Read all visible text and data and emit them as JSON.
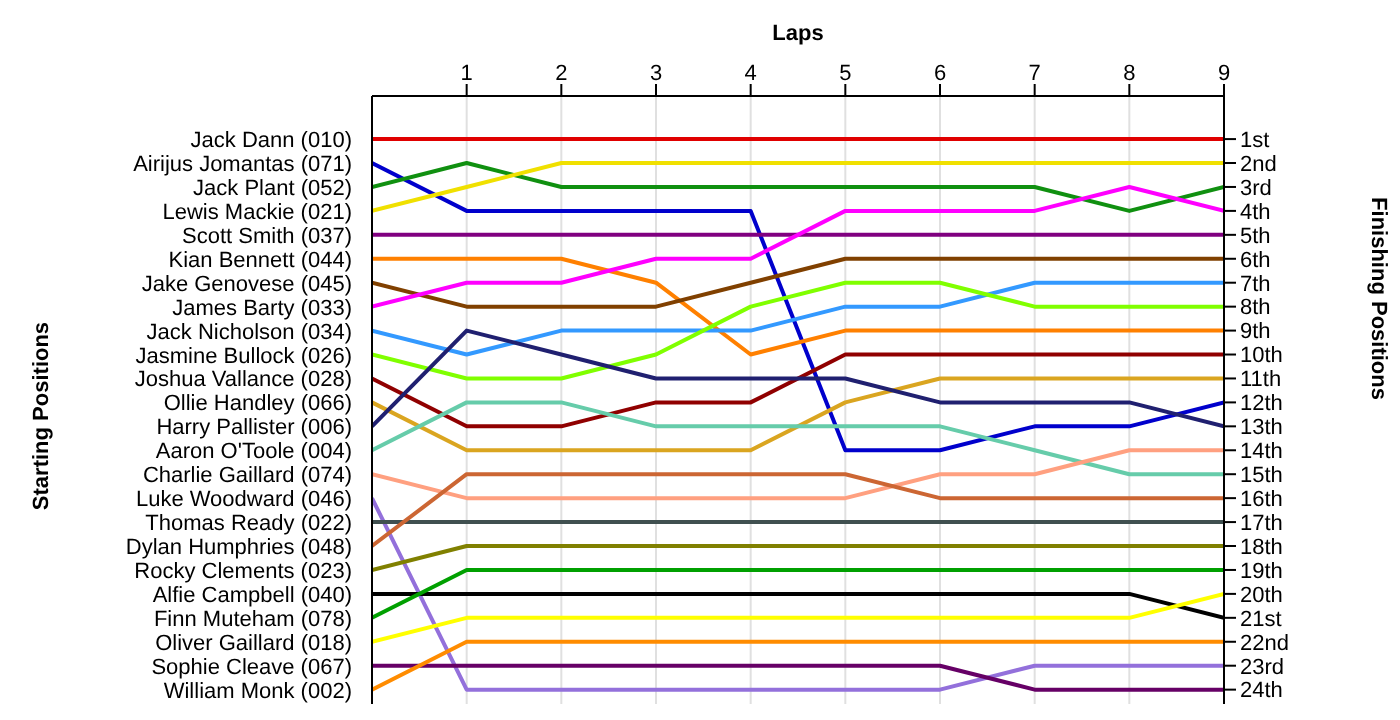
{
  "chart_data": {
    "type": "line",
    "xlabel": "Laps",
    "annotations": [
      "Starting Positions"
    ],
    "y2label": "Finishing Positions",
    "x": [
      0,
      1,
      2,
      3,
      4,
      5,
      6,
      7,
      8,
      9
    ],
    "xlim": [
      0,
      9
    ],
    "xticks": [
      1,
      2,
      3,
      4,
      5,
      6,
      7,
      8,
      9
    ],
    "y2lim": [
      24.6,
      -0.8
    ],
    "y2ticks": [
      {
        "value": 1,
        "label": "1st"
      },
      {
        "value": 2,
        "label": "2nd"
      },
      {
        "value": 3,
        "label": "3rd"
      },
      {
        "value": 4,
        "label": "4th"
      },
      {
        "value": 5,
        "label": "5th"
      },
      {
        "value": 6,
        "label": "6th"
      },
      {
        "value": 7,
        "label": "7th"
      },
      {
        "value": 8,
        "label": "8th"
      },
      {
        "value": 9,
        "label": "9th"
      },
      {
        "value": 10,
        "label": "10th"
      },
      {
        "value": 11,
        "label": "11th"
      },
      {
        "value": 12,
        "label": "12th"
      },
      {
        "value": 13,
        "label": "13th"
      },
      {
        "value": 14,
        "label": "14th"
      },
      {
        "value": 15,
        "label": "15th"
      },
      {
        "value": 16,
        "label": "16th"
      },
      {
        "value": 17,
        "label": "17th"
      },
      {
        "value": 18,
        "label": "18th"
      },
      {
        "value": 19,
        "label": "19th"
      },
      {
        "value": 20,
        "label": "20th"
      },
      {
        "value": 21,
        "label": "21st"
      },
      {
        "value": 22,
        "label": "22nd"
      },
      {
        "value": 23,
        "label": "23rd"
      },
      {
        "value": 24,
        "label": "24th"
      }
    ],
    "grid": "x",
    "legend": false,
    "marker": "none",
    "line_style": "solid",
    "series": [
      {
        "name": "Jack Dann (010)",
        "axis": "y2",
        "color": "#e00000",
        "values": [
          1,
          1,
          1,
          1,
          1,
          1,
          1,
          1,
          1,
          1
        ]
      },
      {
        "name": "Airijus Jomantas (071)",
        "axis": "y2",
        "color": "#0000cc",
        "values": [
          2,
          4,
          4,
          4,
          4,
          14,
          14,
          13,
          13,
          12
        ]
      },
      {
        "name": "Jack Plant (052)",
        "axis": "y2",
        "color": "#109010",
        "values": [
          3,
          2,
          3,
          3,
          3,
          3,
          3,
          3,
          4,
          3
        ]
      },
      {
        "name": "Lewis Mackie (021)",
        "axis": "y2",
        "color": "#f0e000",
        "values": [
          4,
          3,
          2,
          2,
          2,
          2,
          2,
          2,
          2,
          2
        ]
      },
      {
        "name": "Scott Smith (037)",
        "axis": "y2",
        "color": "#800080",
        "values": [
          5,
          5,
          5,
          5,
          5,
          5,
          5,
          5,
          5,
          5
        ]
      },
      {
        "name": "Kian Bennett (044)",
        "axis": "y2",
        "color": "#ff8000",
        "values": [
          6,
          6,
          6,
          7,
          10,
          9,
          9,
          9,
          9,
          9
        ]
      },
      {
        "name": "Jake Genovese (045)",
        "axis": "y2",
        "color": "#804000",
        "values": [
          7,
          8,
          8,
          8,
          7,
          6,
          6,
          6,
          6,
          6
        ]
      },
      {
        "name": "James Barty (033)",
        "axis": "y2",
        "color": "#ff00ff",
        "values": [
          8,
          7,
          7,
          6,
          6,
          4,
          4,
          4,
          3,
          4
        ]
      },
      {
        "name": "Jack Nicholson (034)",
        "axis": "y2",
        "color": "#3399ff",
        "values": [
          9,
          10,
          9,
          9,
          9,
          8,
          8,
          7,
          7,
          7
        ]
      },
      {
        "name": "Jasmine Bullock (026)",
        "axis": "y2",
        "color": "#80ff00",
        "values": [
          10,
          11,
          11,
          10,
          8,
          7,
          7,
          8,
          8,
          8
        ]
      },
      {
        "name": "Joshua Vallance (028)",
        "axis": "y2",
        "color": "#900000",
        "values": [
          11,
          13,
          13,
          12,
          12,
          10,
          10,
          10,
          10,
          10
        ]
      },
      {
        "name": "Ollie Handley (066)",
        "axis": "y2",
        "color": "#daa520",
        "values": [
          12,
          14,
          14,
          14,
          14,
          12,
          11,
          11,
          11,
          11
        ]
      },
      {
        "name": "Harry Pallister (006)",
        "axis": "y2",
        "color": "#202070",
        "values": [
          13,
          9,
          10,
          11,
          11,
          11,
          12,
          12,
          12,
          13
        ]
      },
      {
        "name": "Aaron O'Toole (004)",
        "axis": "y2",
        "color": "#66ccaa",
        "values": [
          14,
          12,
          12,
          13,
          13,
          13,
          13,
          14,
          15,
          15
        ]
      },
      {
        "name": "Charlie Gaillard (074)",
        "axis": "y2",
        "color": "#ffa080",
        "values": [
          15,
          16,
          16,
          16,
          16,
          16,
          15,
          15,
          14,
          14
        ]
      },
      {
        "name": "Luke Woodward (046)",
        "axis": "y2",
        "color": "#9370db",
        "values": [
          16,
          24,
          24,
          24,
          24,
          24,
          24,
          23,
          23,
          23
        ]
      },
      {
        "name": "Thomas Ready (022)",
        "axis": "y2",
        "color": "#405050",
        "values": [
          17,
          17,
          17,
          17,
          17,
          17,
          17,
          17,
          17,
          17
        ]
      },
      {
        "name": "Dylan Humphries (048)",
        "axis": "y2",
        "color": "#cc6633",
        "values": [
          18,
          15,
          15,
          15,
          15,
          15,
          16,
          16,
          16,
          16
        ]
      },
      {
        "name": "Rocky Clements (023)",
        "axis": "y2",
        "color": "#808000",
        "values": [
          19,
          18,
          18,
          18,
          18,
          18,
          18,
          18,
          18,
          18
        ]
      },
      {
        "name": "Alfie Campbell (040)",
        "axis": "y2",
        "color": "#000000",
        "values": [
          20,
          20,
          20,
          20,
          20,
          20,
          20,
          20,
          20,
          21
        ]
      },
      {
        "name": "Finn Muteham (078)",
        "axis": "y2",
        "color": "#00a000",
        "values": [
          21,
          19,
          19,
          19,
          19,
          19,
          19,
          19,
          19,
          19
        ]
      },
      {
        "name": "Oliver Gaillard (018)",
        "axis": "y2",
        "color": "#ffff00",
        "values": [
          22,
          21,
          21,
          21,
          21,
          21,
          21,
          21,
          21,
          20
        ]
      },
      {
        "name": "Sophie Cleave (067)",
        "axis": "y2",
        "color": "#660066",
        "values": [
          23,
          23,
          23,
          23,
          23,
          23,
          23,
          24,
          24,
          24
        ]
      },
      {
        "name": "William Monk (002)",
        "axis": "y2",
        "color": "#ff8c00",
        "values": [
          24,
          22,
          22,
          22,
          22,
          22,
          22,
          22,
          22,
          22
        ]
      }
    ]
  }
}
